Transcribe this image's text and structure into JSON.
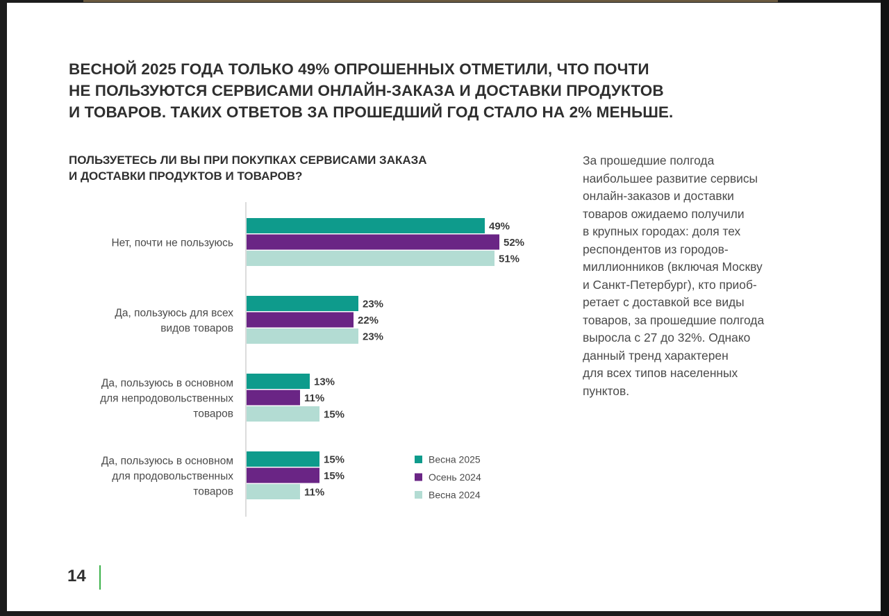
{
  "headline": [
    "ВЕСНОЙ 2025 ГОДА ТОЛЬКО 49% ОПРОШЕННЫХ ОТМЕТИЛИ, ЧТО ПОЧТИ",
    "НЕ ПОЛЬЗУЮТСЯ СЕРВИСАМИ ОНЛАЙН-ЗАКАЗА И ДОСТАВКИ ПРОДУКТОВ",
    "И ТОВАРОВ. ТАКИХ ОТВЕТОВ ЗА ПРОШЕДШИЙ ГОД СТАЛО НА 2% МЕНЬШЕ."
  ],
  "side_text": [
    "За прошедшие полгода",
    "наибольшее развитие сервисы",
    "онлайн-заказов и доставки",
    "товаров ожидаемо получили",
    "в крупных городах: доля тех",
    "респондентов из городов-",
    "миллионников (включая Москву",
    "и Санкт-Петербург), кто приоб-",
    "ретает с доставкой все виды",
    "товаров, за прошедшие полгода",
    "выросла с 27 до 32%. Однако",
    "данный тренд характерен",
    "для всех типов населенных",
    "пунктов."
  ],
  "page_number": "14",
  "chart_data": {
    "type": "bar",
    "orientation": "horizontal",
    "title": [
      "ПОЛЬЗУЕТЕСЬ ЛИ ВЫ ПРИ ПОКУПКАХ СЕРВИСАМИ ЗАКАЗА",
      "И ДОСТАВКИ ПРОДУКТОВ И ТОВАРОВ?"
    ],
    "unit": "%",
    "xlim": [
      0,
      55
    ],
    "legend_position": "bottom-right",
    "categories": [
      [
        "Нет, почти не пользуюсь"
      ],
      [
        "Да, пользуюсь для всех",
        "видов товаров"
      ],
      [
        "Да, пользуюсь в основном",
        "для непродовольственных",
        "товаров"
      ],
      [
        "Да, пользуюсь в основном",
        "для продовольственных",
        "товаров"
      ]
    ],
    "series": [
      {
        "name": "Весна 2025",
        "color": "#0e9b8c",
        "values": [
          49,
          23,
          13,
          15
        ]
      },
      {
        "name": "Осень 2024",
        "color": "#6a2585",
        "values": [
          52,
          22,
          11,
          15
        ]
      },
      {
        "name": "Весна 2024",
        "color": "#b3dcd3",
        "values": [
          51,
          23,
          15,
          11
        ]
      }
    ]
  }
}
